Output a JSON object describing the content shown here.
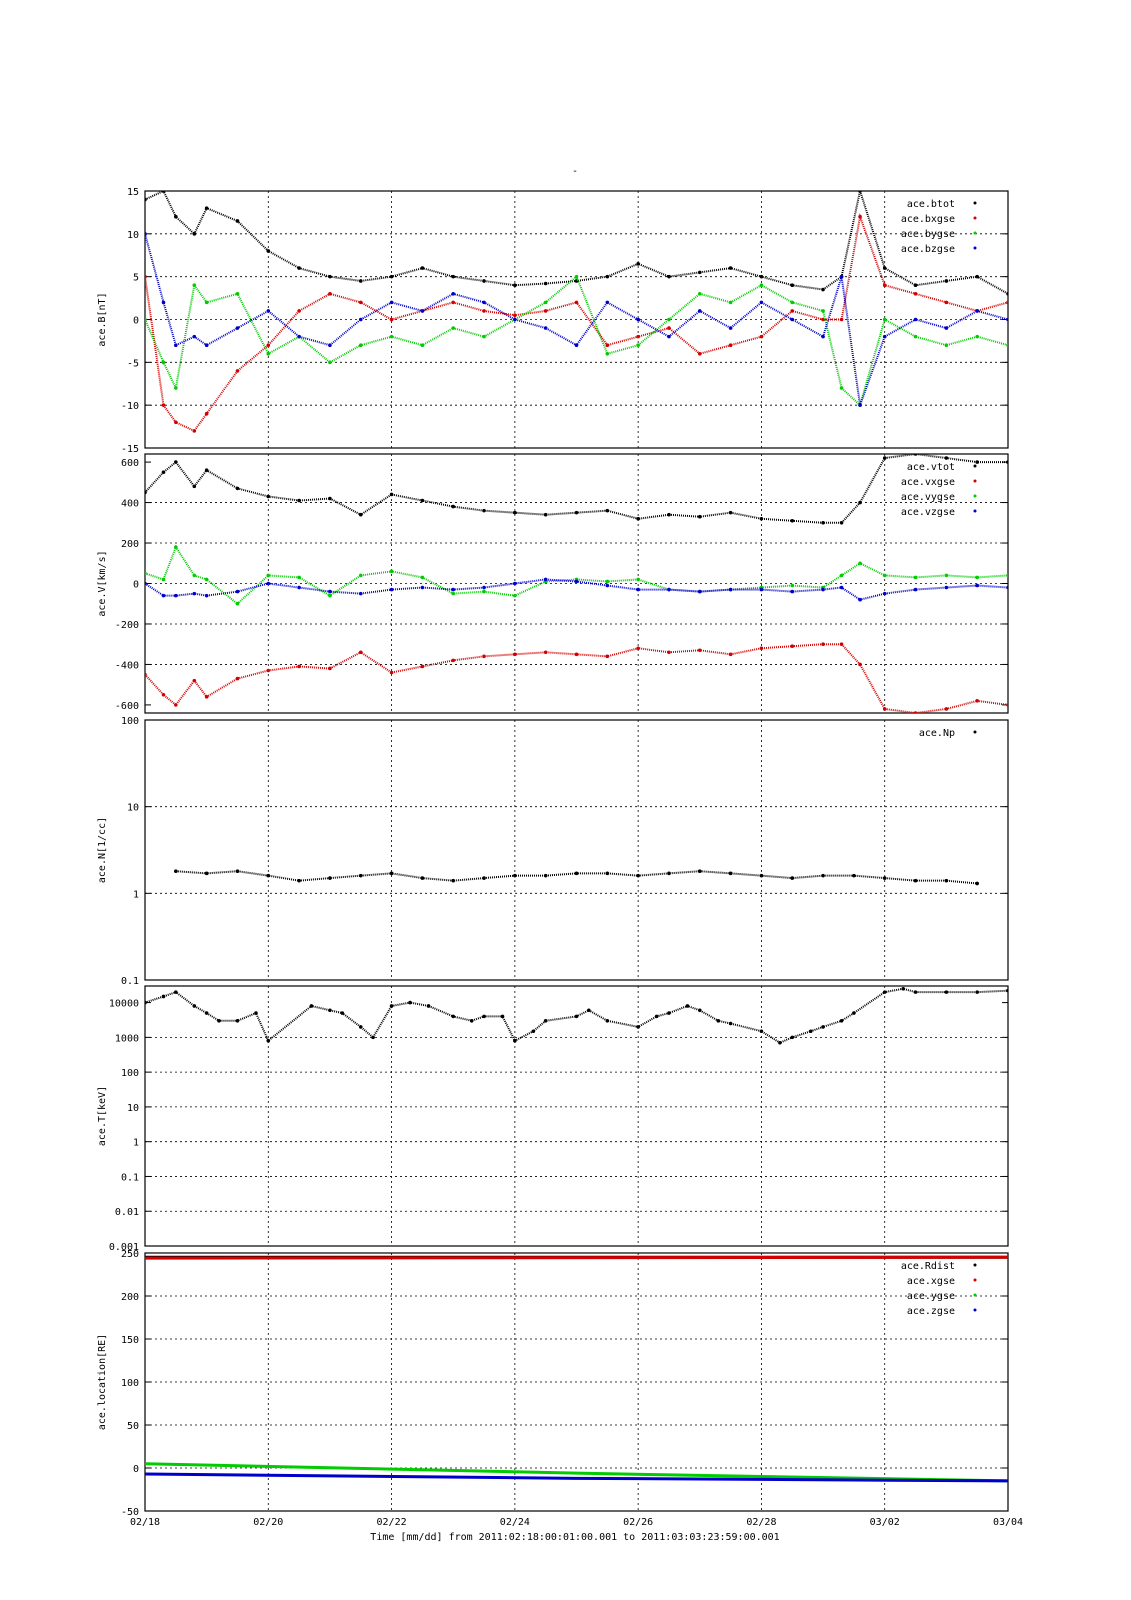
{
  "figure": {
    "top_title": "-",
    "footer": {
      "xlabel": "Time [mm/dd]  from 2011:02:18:00:01:00.001  to  2011:03:03:23:59:00.001",
      "xticks": [
        "02/18",
        "02/20",
        "02/22",
        "02/24",
        "02/26",
        "02/28",
        "03/02",
        "03/04"
      ]
    }
  },
  "colors": {
    "black": "#000000",
    "red": "#d40000",
    "green": "#00cc00",
    "blue": "#0000cc"
  },
  "chart_data": [
    {
      "type": "scatter",
      "ylabel": "ace.B[nT]",
      "ylim": [
        -15,
        15
      ],
      "yticks": [
        "15",
        "10",
        "5",
        "0",
        "-5",
        "-10",
        "-15"
      ],
      "xlim": [
        0,
        14
      ],
      "legend": [
        "ace.btot",
        "ace.bxgse",
        "ace.bygse",
        "ace.bzgse"
      ],
      "legend_position": "top-right",
      "series": [
        {
          "name": "ace.btot",
          "color": "black",
          "x": [
            0,
            0.3,
            0.5,
            0.8,
            1.0,
            1.5,
            2.0,
            2.5,
            3.0,
            3.5,
            4.0,
            4.5,
            5.0,
            5.5,
            6.0,
            6.5,
            7.0,
            7.5,
            8.0,
            8.5,
            9.0,
            9.5,
            10.0,
            10.5,
            11.0,
            11.3,
            11.6,
            12.0,
            12.5,
            13.0,
            13.5,
            14.0
          ],
          "y": [
            14,
            15,
            12,
            10,
            13,
            11.5,
            8,
            6,
            5,
            4.5,
            5,
            6,
            5,
            4.5,
            4,
            4.2,
            4.5,
            5,
            6.5,
            5,
            5.5,
            6,
            5,
            4,
            3.5,
            5,
            15,
            6,
            4,
            4.5,
            5,
            3
          ]
        },
        {
          "name": "ace.bxgse",
          "color": "red",
          "x": [
            0,
            0.3,
            0.5,
            0.8,
            1.0,
            1.5,
            2.0,
            2.5,
            3.0,
            3.5,
            4.0,
            4.5,
            5.0,
            5.5,
            6.0,
            6.5,
            7.0,
            7.5,
            8.0,
            8.5,
            9.0,
            9.5,
            10.0,
            10.5,
            11.0,
            11.3,
            11.6,
            12.0,
            12.5,
            13.0,
            13.5,
            14.0
          ],
          "y": [
            5,
            -10,
            -12,
            -13,
            -11,
            -6,
            -3,
            1,
            3,
            2,
            0,
            1,
            2,
            1,
            0.5,
            1,
            2,
            -3,
            -2,
            -1,
            -4,
            -3,
            -2,
            1,
            0,
            0,
            12,
            4,
            3,
            2,
            1,
            2
          ]
        },
        {
          "name": "ace.bygse",
          "color": "green",
          "x": [
            0,
            0.3,
            0.5,
            0.8,
            1.0,
            1.5,
            2.0,
            2.5,
            3.0,
            3.5,
            4.0,
            4.5,
            5.0,
            5.5,
            6.0,
            6.5,
            7.0,
            7.5,
            8.0,
            8.5,
            9.0,
            9.5,
            10.0,
            10.5,
            11.0,
            11.3,
            11.6,
            12.0,
            12.5,
            13.0,
            13.5,
            14.0
          ],
          "y": [
            0,
            -5,
            -8,
            4,
            2,
            3,
            -4,
            -2,
            -5,
            -3,
            -2,
            -3,
            -1,
            -2,
            0,
            2,
            5,
            -4,
            -3,
            0,
            3,
            2,
            4,
            2,
            1,
            -8,
            -10,
            0,
            -2,
            -3,
            -2,
            -3
          ]
        },
        {
          "name": "ace.bzgse",
          "color": "blue",
          "x": [
            0,
            0.3,
            0.5,
            0.8,
            1.0,
            1.5,
            2.0,
            2.5,
            3.0,
            3.5,
            4.0,
            4.5,
            5.0,
            5.5,
            6.0,
            6.5,
            7.0,
            7.5,
            8.0,
            8.5,
            9.0,
            9.5,
            10.0,
            10.5,
            11.0,
            11.3,
            11.6,
            12.0,
            12.5,
            13.0,
            13.5,
            14.0
          ],
          "y": [
            10,
            2,
            -3,
            -2,
            -3,
            -1,
            1,
            -2,
            -3,
            0,
            2,
            1,
            3,
            2,
            0,
            -1,
            -3,
            2,
            0,
            -2,
            1,
            -1,
            2,
            0,
            -2,
            5,
            -10,
            -2,
            0,
            -1,
            1,
            0
          ]
        }
      ]
    },
    {
      "type": "scatter",
      "ylabel": "ace.V[km/s]",
      "ylim": [
        -640,
        640
      ],
      "yticks": [
        "600",
        "400",
        "200",
        "0",
        "-200",
        "-400",
        "-600"
      ],
      "xlim": [
        0,
        14
      ],
      "legend": [
        "ace.vtot",
        "ace.vxgse",
        "ace.vygse",
        "ace.vzgse"
      ],
      "legend_position": "top-right",
      "series": [
        {
          "name": "ace.vtot",
          "color": "black",
          "x": [
            0,
            0.3,
            0.5,
            0.8,
            1.0,
            1.5,
            2.0,
            2.5,
            3.0,
            3.5,
            4.0,
            4.5,
            5.0,
            5.5,
            6.0,
            6.5,
            7.0,
            7.5,
            8.0,
            8.5,
            9.0,
            9.5,
            10.0,
            10.5,
            11.0,
            11.3,
            11.6,
            12.0,
            12.5,
            13.0,
            13.5,
            14.0
          ],
          "y": [
            450,
            550,
            600,
            480,
            560,
            470,
            430,
            410,
            420,
            340,
            440,
            410,
            380,
            360,
            350,
            340,
            350,
            360,
            320,
            340,
            330,
            350,
            320,
            310,
            300,
            300,
            400,
            620,
            640,
            620,
            600,
            600
          ]
        },
        {
          "name": "ace.vxgse",
          "color": "red",
          "x": [
            0,
            0.3,
            0.5,
            0.8,
            1.0,
            1.5,
            2.0,
            2.5,
            3.0,
            3.5,
            4.0,
            4.5,
            5.0,
            5.5,
            6.0,
            6.5,
            7.0,
            7.5,
            8.0,
            8.5,
            9.0,
            9.5,
            10.0,
            10.5,
            11.0,
            11.3,
            11.6,
            12.0,
            12.5,
            13.0,
            13.5,
            14.0
          ],
          "y": [
            -450,
            -550,
            -600,
            -480,
            -560,
            -470,
            -430,
            -410,
            -420,
            -340,
            -440,
            -410,
            -380,
            -360,
            -350,
            -340,
            -350,
            -360,
            -320,
            -340,
            -330,
            -350,
            -320,
            -310,
            -300,
            -300,
            -400,
            -620,
            -640,
            -620,
            -580,
            -600
          ]
        },
        {
          "name": "ace.vygse",
          "color": "green",
          "x": [
            0,
            0.3,
            0.5,
            0.8,
            1.0,
            1.5,
            2.0,
            2.5,
            3.0,
            3.5,
            4.0,
            4.5,
            5.0,
            5.5,
            6.0,
            6.5,
            7.0,
            7.5,
            8.0,
            8.5,
            9.0,
            9.5,
            10.0,
            10.5,
            11.0,
            11.3,
            11.6,
            12.0,
            12.5,
            13.0,
            13.5,
            14.0
          ],
          "y": [
            50,
            20,
            180,
            40,
            20,
            -100,
            40,
            30,
            -60,
            40,
            60,
            30,
            -50,
            -40,
            -60,
            10,
            20,
            10,
            20,
            -30,
            -40,
            -30,
            -20,
            -10,
            -20,
            40,
            100,
            40,
            30,
            40,
            30,
            40
          ]
        },
        {
          "name": "ace.vzgse",
          "color": "blue",
          "x": [
            0,
            0.3,
            0.5,
            0.8,
            1.0,
            1.5,
            2.0,
            2.5,
            3.0,
            3.5,
            4.0,
            4.5,
            5.0,
            5.5,
            6.0,
            6.5,
            7.0,
            7.5,
            8.0,
            8.5,
            9.0,
            9.5,
            10.0,
            10.5,
            11.0,
            11.3,
            11.6,
            12.0,
            12.5,
            13.0,
            13.5,
            14.0
          ],
          "y": [
            0,
            -60,
            -60,
            -50,
            -60,
            -40,
            0,
            -20,
            -40,
            -50,
            -30,
            -20,
            -30,
            -20,
            0,
            20,
            10,
            -10,
            -30,
            -30,
            -40,
            -30,
            -30,
            -40,
            -30,
            -20,
            -80,
            -50,
            -30,
            -20,
            -10,
            -20
          ]
        }
      ]
    },
    {
      "type": "scatter",
      "ylabel": "ace.N[1/cc]",
      "yscale": "log",
      "ylim": [
        0.1,
        100
      ],
      "yticks": [
        "100",
        "10",
        "1",
        "0.1"
      ],
      "xlim": [
        0,
        14
      ],
      "legend": [
        "ace.Np"
      ],
      "legend_position": "top-right",
      "series": [
        {
          "name": "ace.Np",
          "color": "black",
          "x": [
            0.5,
            1.0,
            1.5,
            2.0,
            2.5,
            3.0,
            3.5,
            4.0,
            4.5,
            5.0,
            5.5,
            6.0,
            6.5,
            7.0,
            7.5,
            8.0,
            8.5,
            9.0,
            9.5,
            10.0,
            10.5,
            11.0,
            11.5,
            12.0,
            12.5,
            13.0,
            13.5
          ],
          "y": [
            1.8,
            1.7,
            1.8,
            1.6,
            1.4,
            1.5,
            1.6,
            1.7,
            1.5,
            1.4,
            1.5,
            1.6,
            1.6,
            1.7,
            1.7,
            1.6,
            1.7,
            1.8,
            1.7,
            1.6,
            1.5,
            1.6,
            1.6,
            1.5,
            1.4,
            1.4,
            1.3
          ]
        }
      ]
    },
    {
      "type": "scatter",
      "ylabel": "ace.T[keV]",
      "yscale": "log",
      "ylim": [
        0.001,
        30000
      ],
      "yticks": [
        "10000",
        "1000",
        "100",
        "10",
        "1",
        "0.1",
        "0.01",
        "0.001"
      ],
      "xlim": [
        0,
        14
      ],
      "series": [
        {
          "name": "",
          "color": "black",
          "x": [
            0,
            0.3,
            0.5,
            0.8,
            1.0,
            1.2,
            1.5,
            1.8,
            2.0,
            2.7,
            3.0,
            3.2,
            3.5,
            3.7,
            4.0,
            4.3,
            4.6,
            5.0,
            5.3,
            5.5,
            5.8,
            6.0,
            6.3,
            6.5,
            7.0,
            7.2,
            7.5,
            8.0,
            8.3,
            8.5,
            8.8,
            9.0,
            9.3,
            9.5,
            10.0,
            10.3,
            10.5,
            10.8,
            11.0,
            11.3,
            11.5,
            12.0,
            12.3,
            12.5,
            13.0,
            13.5,
            14.0
          ],
          "y": [
            10000,
            15000,
            20000,
            8000,
            5000,
            3000,
            3000,
            5000,
            800,
            8000,
            6000,
            5000,
            2000,
            1000,
            8000,
            10000,
            8000,
            4000,
            3000,
            4000,
            4000,
            800,
            1500,
            3000,
            4000,
            6000,
            3000,
            2000,
            4000,
            5000,
            8000,
            6000,
            3000,
            2500,
            1500,
            700,
            1000,
            1500,
            2000,
            3000,
            5000,
            20000,
            25000,
            20000,
            20000,
            20000,
            22000
          ]
        }
      ]
    },
    {
      "type": "line",
      "ylabel": "ace.location[RE]",
      "ylim": [
        -50,
        250
      ],
      "yticks": [
        "250",
        "200",
        "150",
        "100",
        "50",
        "0",
        "-50"
      ],
      "xlim": [
        0,
        14
      ],
      "legend": [
        "ace.Rdist",
        "ace.xgse",
        "ace.ygse",
        "ace.zgse"
      ],
      "legend_position": "top-right",
      "series": [
        {
          "name": "ace.Rdist",
          "color": "black",
          "x": [
            0,
            14
          ],
          "y": [
            245,
            245
          ]
        },
        {
          "name": "ace.xgse",
          "color": "red",
          "x": [
            0,
            14
          ],
          "y": [
            244,
            245
          ]
        },
        {
          "name": "ace.ygse",
          "color": "green",
          "x": [
            0,
            7,
            14
          ],
          "y": [
            5,
            -6,
            -15
          ]
        },
        {
          "name": "ace.zgse",
          "color": "blue",
          "x": [
            0,
            7,
            14
          ],
          "y": [
            -7,
            -12,
            -15
          ]
        }
      ]
    }
  ]
}
